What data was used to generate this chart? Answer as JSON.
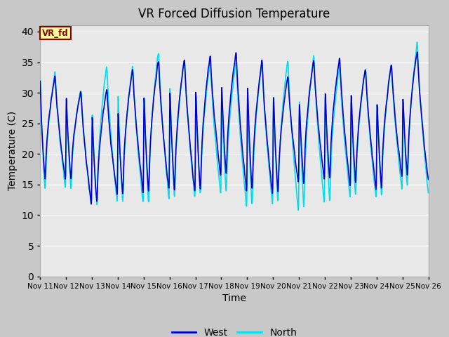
{
  "title": "VR Forced Diffusion Temperature",
  "xlabel": "Time",
  "ylabel": "Temperature (C)",
  "ylim": [
    0,
    41
  ],
  "yticks": [
    0,
    5,
    10,
    15,
    20,
    25,
    30,
    35,
    40
  ],
  "xlim_days": [
    0,
    15
  ],
  "x_tick_labels": [
    "Nov 11",
    "Nov 12",
    "Nov 13",
    "Nov 14",
    "Nov 15",
    "Nov 16",
    "Nov 17",
    "Nov 18",
    "Nov 19",
    "Nov 20",
    "Nov 21",
    "Nov 22",
    "Nov 23",
    "Nov 24",
    "Nov 25",
    "Nov 26"
  ],
  "west_color": "#0000CC",
  "north_color": "#00DDEE",
  "fig_bg_color": "#C8C8C8",
  "plot_bg_color": "#E8E8E8",
  "plot_bg_upper": "#DCDCDC",
  "grid_color": "#FFFFFF",
  "legend_west": "West",
  "legend_north": "North",
  "annotation_text": "VR_fd",
  "annotation_bg": "#FFFF99",
  "annotation_border": "#8B0000",
  "west_linewidth": 1.2,
  "north_linewidth": 1.2,
  "west_peaks": [
    33.0,
    30.5,
    31.0,
    34.3,
    35.8,
    36.0,
    36.5,
    37.0,
    35.5,
    33.0,
    35.5,
    36.0,
    34.3,
    35.0,
    37.2,
    17.5
  ],
  "west_troughs": [
    15.2,
    15.0,
    11.0,
    12.5,
    12.8,
    13.0,
    12.8,
    15.5,
    12.8,
    12.5,
    14.5,
    15.0,
    14.0,
    13.5,
    15.5,
    17.0
  ],
  "north_peaks": [
    33.5,
    31.0,
    34.8,
    35.0,
    37.2,
    35.8,
    35.5,
    35.5,
    35.5,
    35.8,
    36.5,
    35.0,
    34.5,
    35.0,
    38.5,
    15.0
  ],
  "north_troughs": [
    13.2,
    13.5,
    10.5,
    11.0,
    11.0,
    11.5,
    12.0,
    12.5,
    10.2,
    10.8,
    9.8,
    11.0,
    12.0,
    12.0,
    13.5,
    14.5
  ]
}
